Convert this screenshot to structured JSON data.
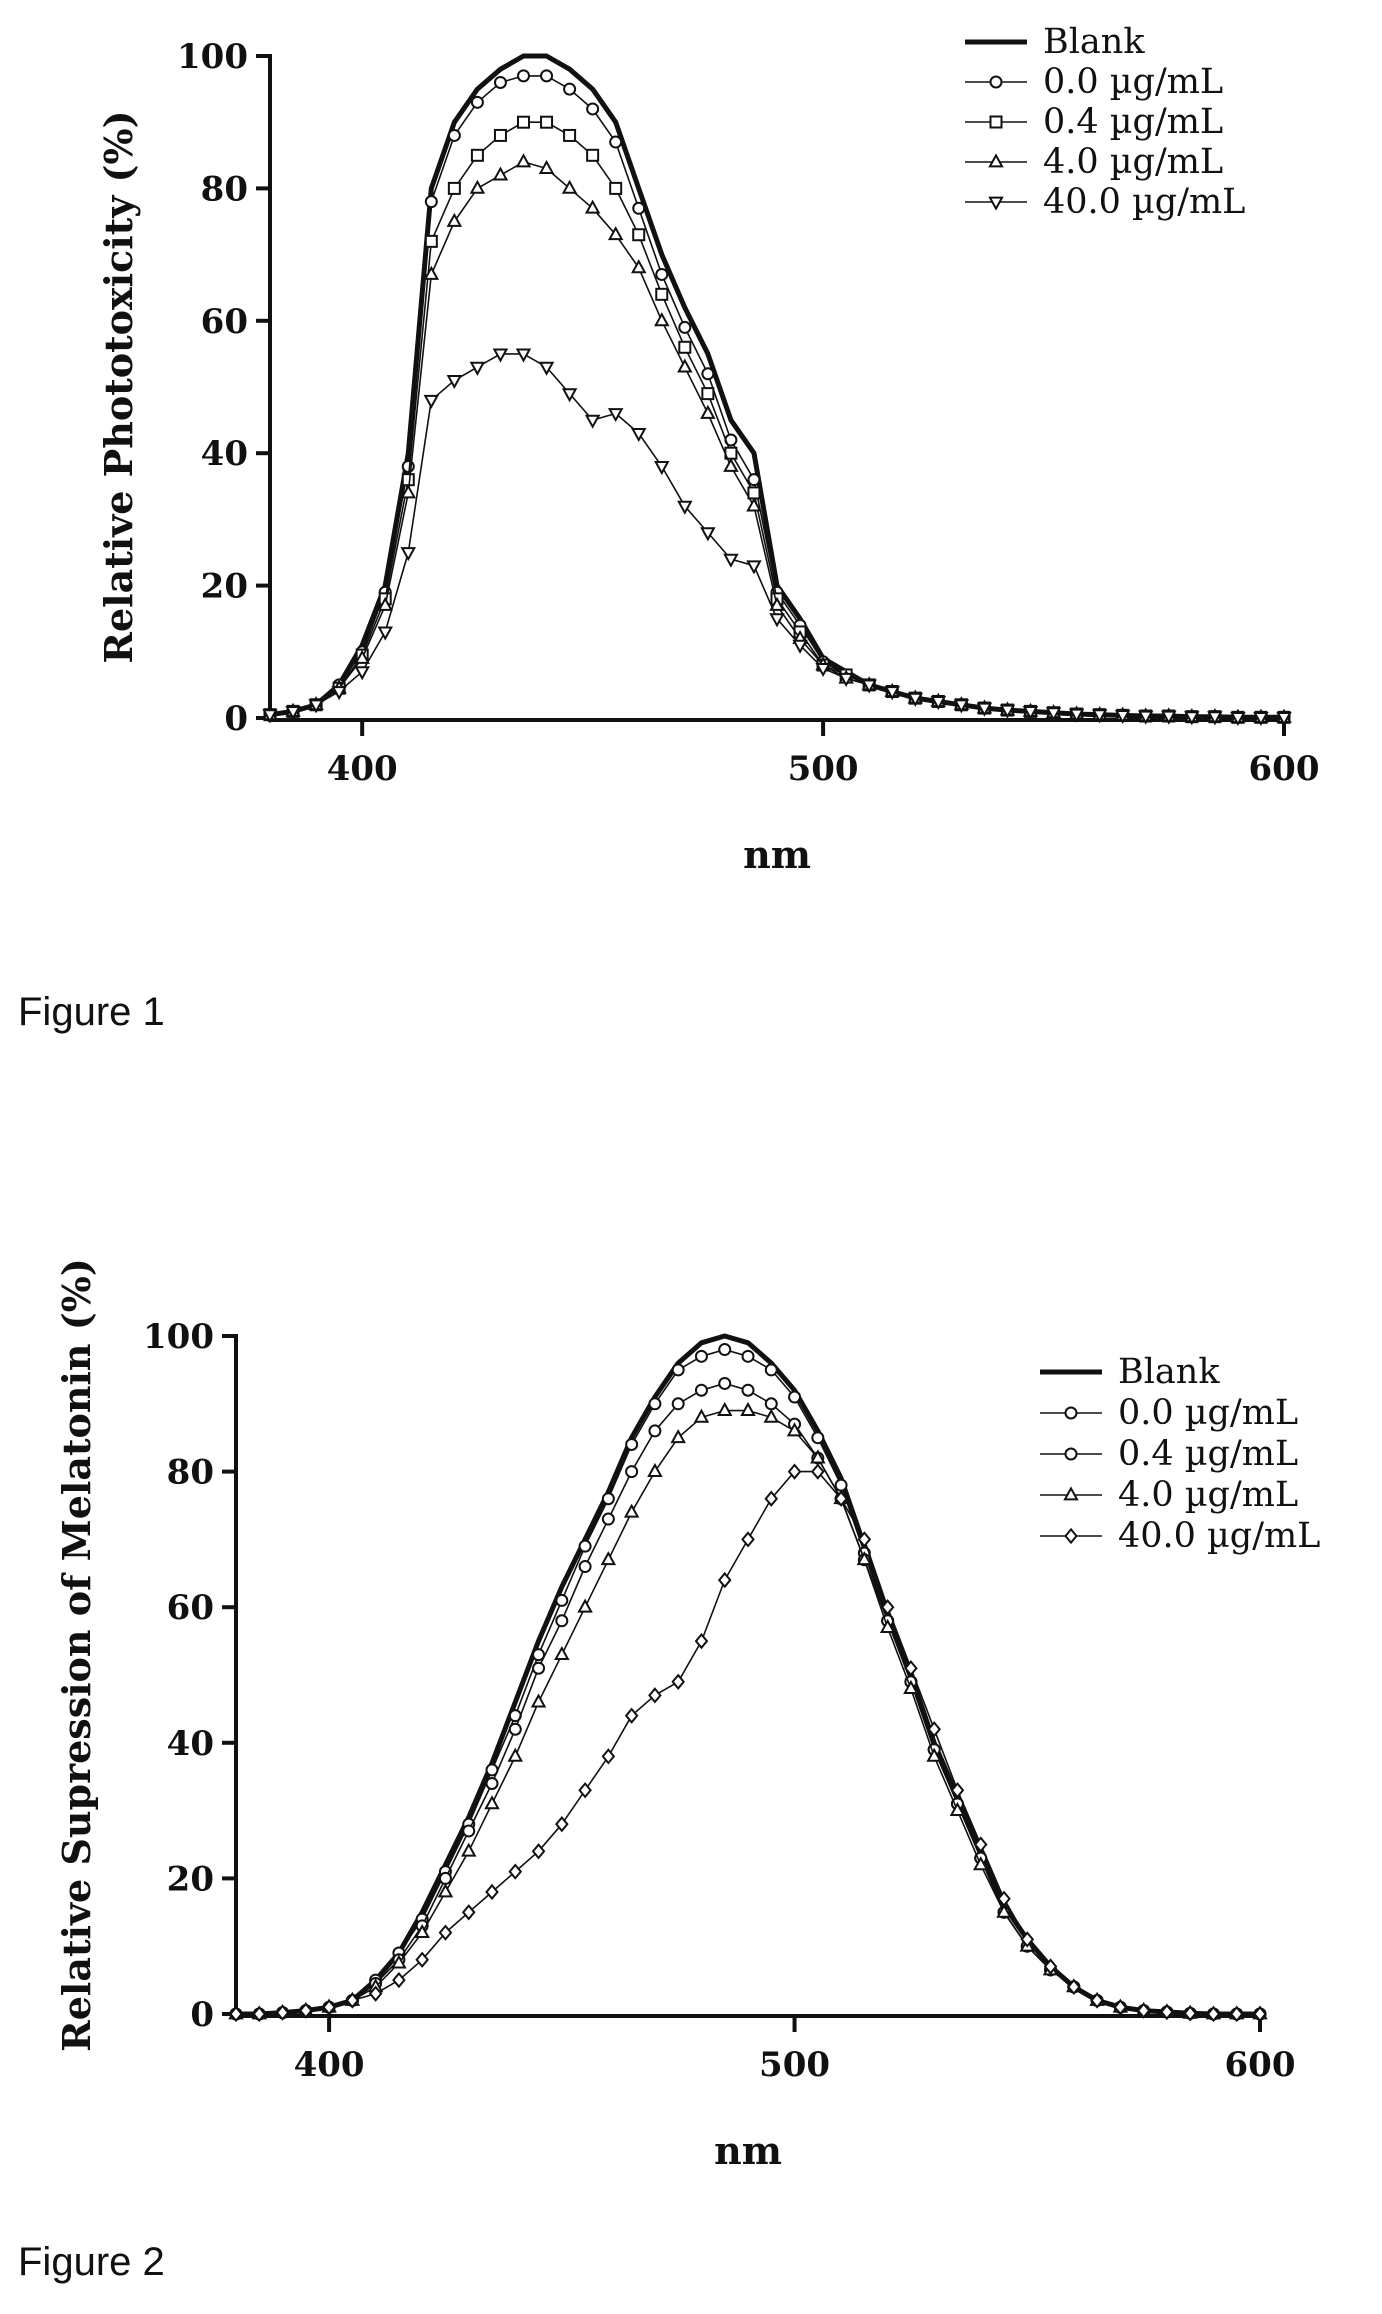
{
  "captions": {
    "figure1": "Figure 1",
    "figure2": "Figure 2"
  },
  "chart_data": [
    {
      "type": "line",
      "xlabel": "nm",
      "ylabel": "Relative Phototoxicity (%)",
      "xlim": [
        380,
        600
      ],
      "ylim": [
        0,
        100
      ],
      "xticks": [
        400,
        500,
        600
      ],
      "yticks": [
        0,
        20,
        40,
        60,
        80,
        100
      ],
      "legend_position": "top-right",
      "x": [
        380,
        385,
        390,
        395,
        400,
        405,
        410,
        415,
        420,
        425,
        430,
        435,
        440,
        445,
        450,
        455,
        460,
        465,
        470,
        475,
        480,
        485,
        490,
        495,
        500,
        505,
        510,
        515,
        520,
        525,
        530,
        535,
        540,
        545,
        550,
        555,
        560,
        565,
        570,
        575,
        580,
        585,
        590,
        595,
        600
      ],
      "series": [
        {
          "name": "Blank",
          "marker": "none",
          "values": [
            0.5,
            1,
            2,
            5,
            11,
            20,
            40,
            80,
            90,
            95,
            98,
            100,
            100,
            98,
            95,
            90,
            80,
            70,
            62,
            55,
            45,
            40,
            20,
            15,
            9,
            7,
            5,
            4,
            3,
            2.5,
            2,
            1.5,
            1.2,
            1,
            0.8,
            0.6,
            0.5,
            0.4,
            0.3,
            0.3,
            0.2,
            0.2,
            0.1,
            0.1,
            0.1
          ]
        },
        {
          "name": "0.0 µg/mL",
          "marker": "circle",
          "values": [
            0.5,
            1,
            2,
            5,
            10,
            19,
            38,
            78,
            88,
            93,
            96,
            97,
            97,
            95,
            92,
            87,
            77,
            67,
            59,
            52,
            42,
            36,
            19,
            14,
            8.5,
            6.5,
            5,
            4,
            3,
            2.5,
            2,
            1.5,
            1.2,
            1,
            0.8,
            0.6,
            0.5,
            0.4,
            0.3,
            0.3,
            0.2,
            0.2,
            0.1,
            0.1,
            0.1
          ]
        },
        {
          "name": "0.4 µg/mL",
          "marker": "square",
          "values": [
            0.5,
            1,
            2,
            4.5,
            9.5,
            18,
            36,
            72,
            80,
            85,
            88,
            90,
            90,
            88,
            85,
            80,
            73,
            64,
            56,
            49,
            40,
            34,
            18,
            13,
            8,
            6.5,
            5,
            4,
            3,
            2.5,
            2,
            1.5,
            1.2,
            1,
            0.8,
            0.6,
            0.5,
            0.4,
            0.3,
            0.3,
            0.2,
            0.2,
            0.1,
            0.1,
            0.1
          ]
        },
        {
          "name": "4.0 µg/mL",
          "marker": "triangle-up",
          "values": [
            0.5,
            1,
            2,
            4.5,
            9,
            17,
            34,
            67,
            75,
            80,
            82,
            84,
            83,
            80,
            77,
            73,
            68,
            60,
            53,
            46,
            38,
            32,
            17,
            12,
            8,
            6,
            5,
            4,
            3,
            2.5,
            2,
            1.5,
            1.2,
            1,
            0.8,
            0.6,
            0.5,
            0.4,
            0.3,
            0.3,
            0.2,
            0.2,
            0.1,
            0.1,
            0.1
          ]
        },
        {
          "name": "40.0 µg/mL",
          "marker": "triangle-down",
          "values": [
            0.5,
            1,
            2,
            4,
            7,
            13,
            25,
            48,
            51,
            53,
            55,
            55,
            53,
            49,
            45,
            46,
            43,
            38,
            32,
            28,
            24,
            23,
            15,
            11,
            7.5,
            6,
            5,
            4,
            3,
            2.5,
            2,
            1.5,
            1.2,
            1,
            0.8,
            0.6,
            0.5,
            0.4,
            0.3,
            0.3,
            0.2,
            0.2,
            0.1,
            0.1,
            0.1
          ]
        }
      ]
    },
    {
      "type": "line",
      "xlabel": "nm",
      "ylabel": "Relative Supression of Melatonin (%)",
      "xlim": [
        380,
        600
      ],
      "ylim": [
        0,
        100
      ],
      "xticks": [
        400,
        500,
        600
      ],
      "yticks": [
        0,
        20,
        40,
        60,
        80,
        100
      ],
      "legend_position": "right",
      "x": [
        380,
        385,
        390,
        395,
        400,
        405,
        410,
        415,
        420,
        425,
        430,
        435,
        440,
        445,
        450,
        455,
        460,
        465,
        470,
        475,
        480,
        485,
        490,
        495,
        500,
        505,
        510,
        515,
        520,
        525,
        530,
        535,
        540,
        545,
        550,
        555,
        560,
        565,
        570,
        575,
        580,
        585,
        590,
        595,
        600
      ],
      "series": [
        {
          "name": "Blank",
          "marker": "none",
          "values": [
            0,
            0,
            0.2,
            0.5,
            1,
            2,
            5,
            9,
            15,
            22,
            29,
            37,
            46,
            55,
            63,
            70,
            77,
            85,
            91,
            96,
            99,
            100,
            99,
            96,
            92,
            86,
            79,
            69,
            59,
            50,
            40,
            32,
            24,
            16,
            11,
            7,
            4,
            2,
            1,
            0.5,
            0.3,
            0.1,
            0,
            0,
            0
          ]
        },
        {
          "name": "0.0 µg/mL",
          "marker": "circle",
          "values": [
            0,
            0,
            0.2,
            0.5,
            1,
            2,
            5,
            9,
            14,
            21,
            28,
            36,
            44,
            53,
            61,
            69,
            76,
            84,
            90,
            95,
            97,
            98,
            97,
            95,
            91,
            85,
            78,
            68,
            58,
            49,
            39,
            31,
            23,
            15,
            10,
            6.5,
            4,
            2,
            1,
            0.5,
            0.3,
            0.1,
            0,
            0,
            0
          ]
        },
        {
          "name": "0.4 µg/mL",
          "marker": "circle",
          "values": [
            0,
            0,
            0.2,
            0.5,
            1,
            2,
            4.5,
            8,
            13,
            20,
            27,
            34,
            42,
            51,
            58,
            66,
            73,
            80,
            86,
            90,
            92,
            93,
            92,
            90,
            87,
            82,
            76,
            67,
            58,
            49,
            39,
            31,
            23,
            15,
            10,
            6.5,
            4,
            2,
            1,
            0.5,
            0.3,
            0.1,
            0,
            0,
            0
          ]
        },
        {
          "name": "4.0 µg/mL",
          "marker": "triangle-up",
          "values": [
            0,
            0,
            0.2,
            0.5,
            1,
            2,
            4,
            7.5,
            12,
            18,
            24,
            31,
            38,
            46,
            53,
            60,
            67,
            74,
            80,
            85,
            88,
            89,
            89,
            88,
            86,
            82,
            76,
            67,
            57,
            48,
            38,
            30,
            22,
            15,
            10,
            6.5,
            4,
            2,
            1,
            0.5,
            0.3,
            0.1,
            0,
            0,
            0
          ]
        },
        {
          "name": "40.0 µg/mL",
          "marker": "diamond",
          "values": [
            0,
            0,
            0.2,
            0.5,
            1,
            2,
            3,
            5,
            8,
            12,
            15,
            18,
            21,
            24,
            28,
            33,
            38,
            44,
            47,
            49,
            55,
            64,
            70,
            76,
            80,
            80,
            76,
            70,
            60,
            51,
            42,
            33,
            25,
            17,
            11,
            7,
            4,
            2,
            1,
            0.5,
            0.3,
            0.1,
            0,
            0,
            0
          ]
        }
      ]
    }
  ]
}
